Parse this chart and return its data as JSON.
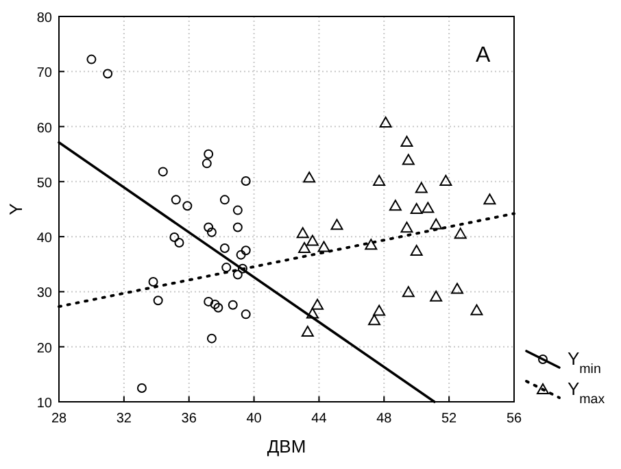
{
  "chart_data": {
    "type": "scatter",
    "xlabel": "ДВМ",
    "ylabel": "Y",
    "annotations": [
      "A"
    ],
    "xlim": [
      28,
      56
    ],
    "xticks": [
      28,
      32,
      36,
      40,
      44,
      48,
      52,
      56
    ],
    "ylim": [
      10,
      80
    ],
    "yticks": [
      10,
      20,
      30,
      40,
      50,
      60,
      70,
      80
    ],
    "grid": true,
    "legend": "right",
    "series": [
      {
        "name": "Y$_{min}$",
        "marker": "circle",
        "color": "#000000",
        "x": [
          30.0,
          31.0,
          34.4,
          37.2,
          37.1,
          39.5,
          35.2,
          35.9,
          38.2,
          39.0,
          37.2,
          39.0,
          37.4,
          35.1,
          35.4,
          38.2,
          39.2,
          39.5,
          38.3,
          39.0,
          39.3,
          33.8,
          34.1,
          37.2,
          37.6,
          37.8,
          38.7,
          39.5,
          37.4,
          33.1
        ],
        "values": [
          72.2,
          69.6,
          51.8,
          55.0,
          53.3,
          50.1,
          46.7,
          45.6,
          46.7,
          44.8,
          41.7,
          41.7,
          40.8,
          39.9,
          38.9,
          37.9,
          36.7,
          37.5,
          34.4,
          33.1,
          34.2,
          31.8,
          28.4,
          28.2,
          27.7,
          27.1,
          27.6,
          25.9,
          21.5,
          12.5
        ]
      },
      {
        "name": "Y$_{max}$",
        "marker": "triangle",
        "color": "#000000",
        "x": [
          48.1,
          49.4,
          49.5,
          43.4,
          47.7,
          51.8,
          50.3,
          54.5,
          48.7,
          50.0,
          50.7,
          45.1,
          49.4,
          51.2,
          52.7,
          43.0,
          43.6,
          44.3,
          43.1,
          47.2,
          50.0,
          49.5,
          51.2,
          52.5,
          43.9,
          47.7,
          53.7,
          43.6,
          43.3,
          47.4
        ],
        "values": [
          60.7,
          57.2,
          53.9,
          50.7,
          50.1,
          50.1,
          48.8,
          46.7,
          45.6,
          45.0,
          45.2,
          42.1,
          41.6,
          42.2,
          40.5,
          40.6,
          39.2,
          38.1,
          37.9,
          38.5,
          37.4,
          29.9,
          29.1,
          30.5,
          27.6,
          26.5,
          26.6,
          26.0,
          22.7,
          24.8
        ]
      },
      {
        "type": "line",
        "line_style": "solid",
        "marker": "none",
        "color": "#000000",
        "x": [
          28,
          51.1
        ],
        "values": [
          57.1,
          10
        ]
      },
      {
        "type": "line",
        "line_style": "dotted",
        "marker": "none",
        "color": "#000000",
        "x": [
          28,
          56
        ],
        "values": [
          27.3,
          44.2
        ]
      }
    ]
  }
}
